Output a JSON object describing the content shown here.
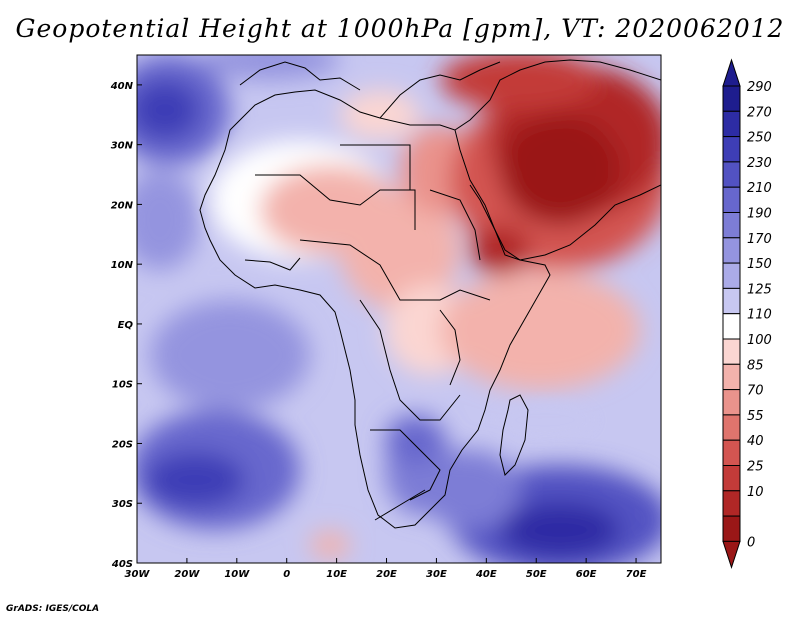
{
  "title": "Geopotential Height at 1000hPa [gpm], VT: 2020062012",
  "footer": "GrADS: IGES/COLA",
  "map": {
    "region": "Africa and Arabian Peninsula",
    "projection": "latlon",
    "lon_range": [
      -30,
      75
    ],
    "lat_range": [
      -40,
      45
    ],
    "lon_ticks": [
      "30W",
      "20W",
      "10W",
      "0",
      "10E",
      "20E",
      "30E",
      "40E",
      "50E",
      "60E",
      "70E"
    ],
    "lat_ticks": [
      "40N",
      "30N",
      "20N",
      "10N",
      "EQ",
      "10S",
      "20S",
      "30S",
      "40S"
    ]
  },
  "colorbar": {
    "labels": [
      "290",
      "270",
      "250",
      "230",
      "210",
      "190",
      "170",
      "150",
      "125",
      "110",
      "100",
      "85",
      "70",
      "55",
      "40",
      "25",
      "10",
      "0"
    ],
    "colors": [
      "#1e1d8e",
      "#2d2ca4",
      "#3e3eb6",
      "#5252c2",
      "#6767cd",
      "#7d7dd6",
      "#9494df",
      "#ababe8",
      "#c7c7f1",
      "#ffffff",
      "#fbd6d2",
      "#f3b2ac",
      "#ea938c",
      "#df746d",
      "#d35551",
      "#c33b39",
      "#b02726",
      "#9a1717"
    ]
  }
}
